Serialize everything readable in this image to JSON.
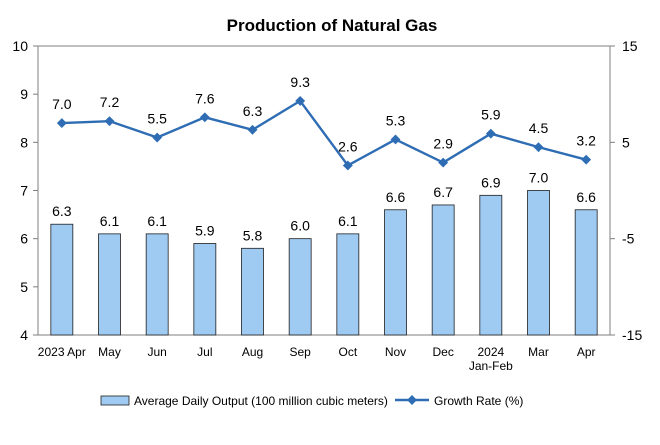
{
  "chart_data": {
    "type": "bar",
    "title": "Production of Natural Gas",
    "categories": [
      "2023 Apr",
      "May",
      "Jun",
      "Jul",
      "Aug",
      "Sep",
      "Oct",
      "Nov",
      "Dec",
      "2024\nJan-Feb",
      "Mar",
      "Apr"
    ],
    "series": [
      {
        "name": "Average Daily Output (100 million cubic meters)",
        "type": "bar",
        "axis": "left",
        "values": [
          6.3,
          6.1,
          6.1,
          5.9,
          5.8,
          6.0,
          6.1,
          6.6,
          6.7,
          6.9,
          7.0,
          6.6
        ]
      },
      {
        "name": "Growth Rate (%)",
        "type": "line",
        "axis": "right",
        "values": [
          7.0,
          7.2,
          5.5,
          7.6,
          6.3,
          9.3,
          2.6,
          5.3,
          2.9,
          5.9,
          4.5,
          3.2
        ]
      }
    ],
    "y_left": {
      "range": [
        4,
        10
      ],
      "ticks": [
        4,
        5,
        6,
        7,
        8,
        9,
        10
      ]
    },
    "y_right": {
      "range": [
        -15,
        15
      ],
      "ticks": [
        -15,
        -5,
        5,
        15
      ]
    },
    "grid": false,
    "legend_position": "bottom",
    "colors": {
      "bar_fill": "#9fcaf2",
      "bar_stroke": "#1f1f1f",
      "line": "#2e6db4"
    }
  }
}
